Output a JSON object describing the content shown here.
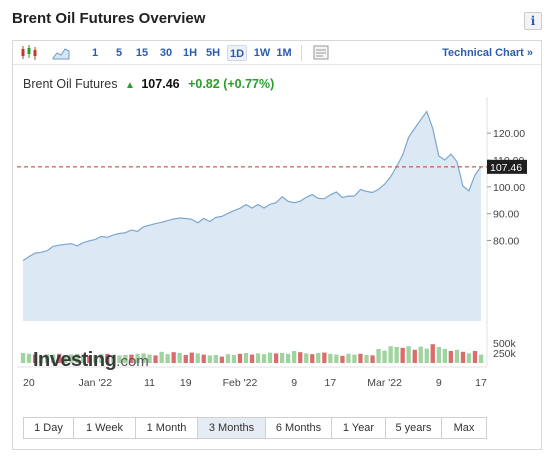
{
  "header": {
    "title": "Brent Oil Futures Overview",
    "info_label": "i"
  },
  "toolbar": {
    "intervals": [
      "1",
      "5",
      "15",
      "30",
      "1H",
      "5H",
      "1D",
      "1W",
      "1M"
    ],
    "active_interval": "1D",
    "technical_chart_label": "Technical Chart »"
  },
  "quote": {
    "name": "Brent Oil Futures",
    "last": "107.46",
    "change": "+0.82",
    "change_pct": "(+0.77%)"
  },
  "watermark": {
    "brand": "Investing",
    "suffix": ".com"
  },
  "ranges": {
    "items": [
      "1 Day",
      "1 Week",
      "1 Month",
      "3 Months",
      "6 Months",
      "1 Year",
      "5 years",
      "Max"
    ],
    "active": "3 Months"
  },
  "colors": {
    "line": "#7aa8cf",
    "area": "#dce9f5",
    "vol_up": "#9fd39f",
    "vol_down": "#d96c6c",
    "last_line": "#c0392b",
    "last_label_bg": "#1f1f1f"
  },
  "chart_data": {
    "type": "area",
    "price": {
      "ylim": [
        50,
        132
      ],
      "yticks": [
        "120.00",
        "110.00",
        "100.00",
        "90.00",
        "80.00"
      ],
      "last_value": 107.46,
      "last_label": "107.46",
      "x_ticks": [
        "20",
        "Jan '22",
        "11",
        "19",
        "Feb '22",
        "9",
        "17",
        "Mar '22",
        "9",
        "17"
      ],
      "x_tick_index": [
        0,
        12,
        21,
        27,
        36,
        45,
        51,
        60,
        69,
        76
      ],
      "values": [
        72.5,
        74.0,
        75.3,
        75.6,
        76.2,
        77.8,
        78.3,
        78.6,
        78.8,
        78.0,
        79.2,
        79.9,
        80.4,
        81.5,
        81.2,
        82.1,
        82.6,
        82.9,
        83.9,
        83.4,
        85.1,
        85.7,
        86.3,
        86.8,
        87.4,
        88.0,
        88.4,
        88.2,
        87.9,
        86.6,
        88.2,
        87.1,
        88.6,
        89.0,
        90.1,
        91.1,
        92.0,
        93.4,
        92.1,
        93.4,
        92.1,
        93.5,
        94.1,
        96.3,
        94.6,
        94.1,
        94.6,
        96.1,
        97.1,
        95.7,
        95.6,
        97.0,
        98.1,
        96.0,
        96.6,
        96.5,
        99.0,
        98.3,
        97.9,
        99.1,
        101.0,
        103.7,
        107.6,
        111.9,
        118.5,
        121.8,
        125.0,
        128.1,
        121.7,
        111.5,
        110.0,
        112.2,
        109.4,
        100.3,
        98.5,
        104.4,
        107.5
      ]
    },
    "volume": {
      "yticks": [
        "500k",
        "250k"
      ],
      "max": 650,
      "bars": [
        {
          "v": 250,
          "d": "up"
        },
        {
          "v": 230,
          "d": "up"
        },
        {
          "v": 210,
          "d": "down"
        },
        {
          "v": 190,
          "d": "up"
        },
        {
          "v": 220,
          "d": "up"
        },
        {
          "v": 210,
          "d": "up"
        },
        {
          "v": 230,
          "d": "down"
        },
        {
          "v": 200,
          "d": "up"
        },
        {
          "v": 215,
          "d": "up"
        },
        {
          "v": 230,
          "d": "up"
        },
        {
          "v": 210,
          "d": "up"
        },
        {
          "v": 180,
          "d": "down"
        },
        {
          "v": 200,
          "d": "up"
        },
        {
          "v": 220,
          "d": "up"
        },
        {
          "v": 230,
          "d": "down"
        },
        {
          "v": 210,
          "d": "up"
        },
        {
          "v": 190,
          "d": "up"
        },
        {
          "v": 200,
          "d": "up"
        },
        {
          "v": 210,
          "d": "down"
        },
        {
          "v": 230,
          "d": "up"
        },
        {
          "v": 240,
          "d": "up"
        },
        {
          "v": 210,
          "d": "up"
        },
        {
          "v": 190,
          "d": "down"
        },
        {
          "v": 280,
          "d": "up"
        },
        {
          "v": 220,
          "d": "up"
        },
        {
          "v": 270,
          "d": "down"
        },
        {
          "v": 250,
          "d": "up"
        },
        {
          "v": 200,
          "d": "down"
        },
        {
          "v": 260,
          "d": "down"
        },
        {
          "v": 240,
          "d": "up"
        },
        {
          "v": 210,
          "d": "down"
        },
        {
          "v": 190,
          "d": "up"
        },
        {
          "v": 200,
          "d": "up"
        },
        {
          "v": 160,
          "d": "down"
        },
        {
          "v": 220,
          "d": "up"
        },
        {
          "v": 200,
          "d": "up"
        },
        {
          "v": 230,
          "d": "down"
        },
        {
          "v": 250,
          "d": "up"
        },
        {
          "v": 210,
          "d": "down"
        },
        {
          "v": 240,
          "d": "up"
        },
        {
          "v": 220,
          "d": "up"
        },
        {
          "v": 260,
          "d": "up"
        },
        {
          "v": 240,
          "d": "down"
        },
        {
          "v": 250,
          "d": "up"
        },
        {
          "v": 230,
          "d": "up"
        },
        {
          "v": 300,
          "d": "up"
        },
        {
          "v": 270,
          "d": "down"
        },
        {
          "v": 240,
          "d": "up"
        },
        {
          "v": 220,
          "d": "down"
        },
        {
          "v": 250,
          "d": "up"
        },
        {
          "v": 260,
          "d": "down"
        },
        {
          "v": 230,
          "d": "up"
        },
        {
          "v": 210,
          "d": "up"
        },
        {
          "v": 180,
          "d": "down"
        },
        {
          "v": 230,
          "d": "up"
        },
        {
          "v": 210,
          "d": "up"
        },
        {
          "v": 230,
          "d": "down"
        },
        {
          "v": 200,
          "d": "up"
        },
        {
          "v": 190,
          "d": "down"
        },
        {
          "v": 350,
          "d": "up"
        },
        {
          "v": 310,
          "d": "up"
        },
        {
          "v": 420,
          "d": "up"
        },
        {
          "v": 400,
          "d": "up"
        },
        {
          "v": 380,
          "d": "down"
        },
        {
          "v": 420,
          "d": "up"
        },
        {
          "v": 330,
          "d": "down"
        },
        {
          "v": 410,
          "d": "up"
        },
        {
          "v": 360,
          "d": "up"
        },
        {
          "v": 470,
          "d": "down"
        },
        {
          "v": 400,
          "d": "up"
        },
        {
          "v": 350,
          "d": "up"
        },
        {
          "v": 300,
          "d": "down"
        },
        {
          "v": 330,
          "d": "up"
        },
        {
          "v": 280,
          "d": "down"
        },
        {
          "v": 240,
          "d": "up"
        },
        {
          "v": 300,
          "d": "down"
        },
        {
          "v": 210,
          "d": "up"
        }
      ]
    }
  }
}
